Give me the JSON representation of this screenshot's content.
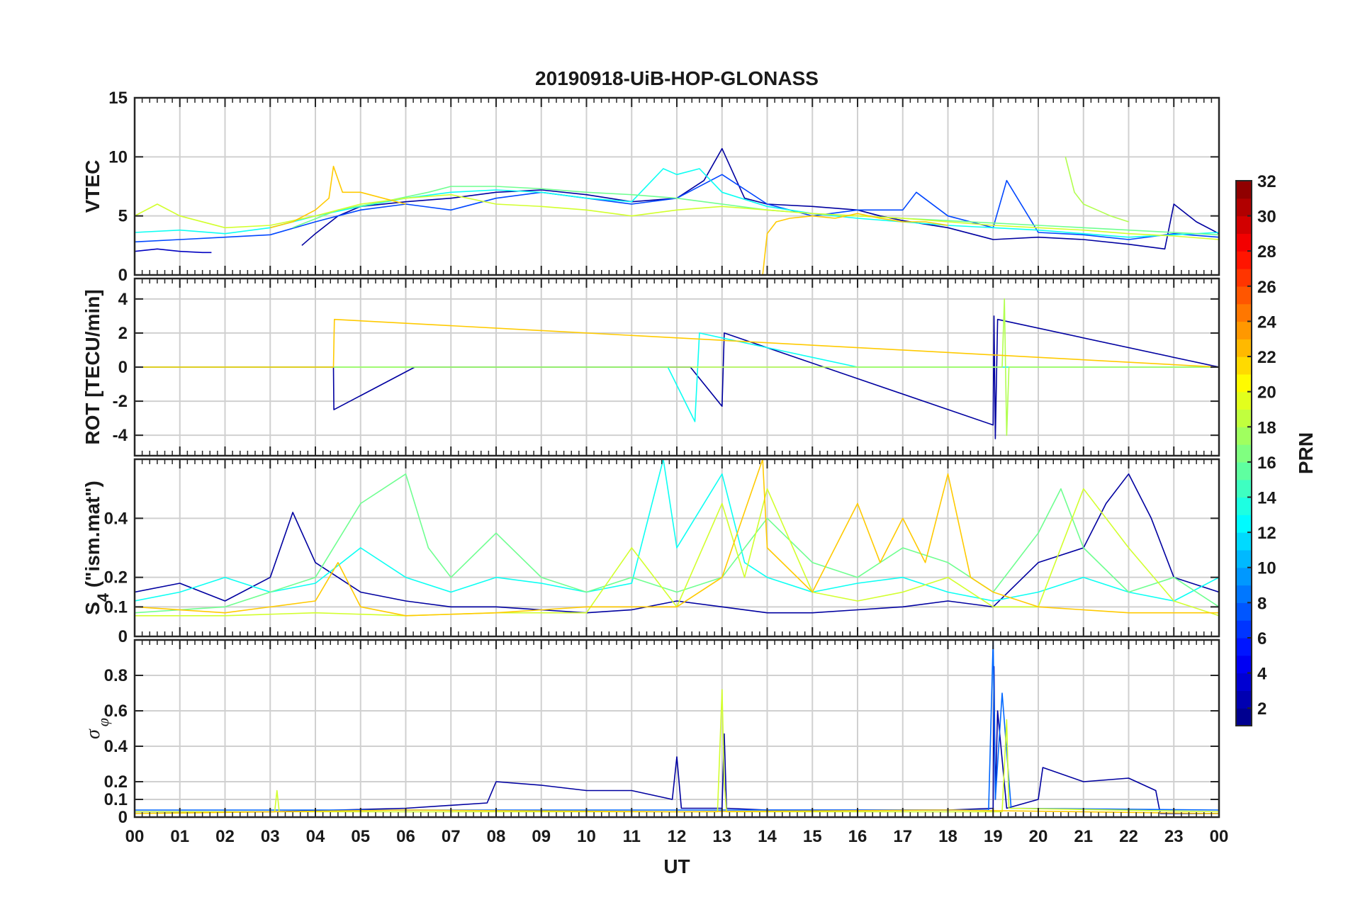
{
  "chart_data": {
    "type": "line",
    "title": "20190918-UiB-HOP-GLONASS",
    "xlabel": "UT",
    "x_ticks": [
      "00",
      "01",
      "02",
      "03",
      "04",
      "05",
      "06",
      "07",
      "08",
      "09",
      "10",
      "11",
      "12",
      "13",
      "14",
      "15",
      "16",
      "17",
      "18",
      "19",
      "20",
      "21",
      "22",
      "23",
      "00"
    ],
    "xlim_hours": [
      0,
      24
    ],
    "grid": true,
    "colorbar": {
      "label": "PRN",
      "range": [
        1,
        32
      ],
      "ticks": [
        "2",
        "4",
        "6",
        "8",
        "10",
        "12",
        "14",
        "16",
        "18",
        "20",
        "22",
        "24",
        "26",
        "28",
        "30",
        "32"
      ],
      "colormap": "jet",
      "placement": "right"
    },
    "panels": [
      {
        "ylabel": "VTEC",
        "ylim": [
          0,
          15
        ],
        "yticks": [
          "0",
          "5",
          "10",
          "15"
        ],
        "series": [
          {
            "prn": 3,
            "x": [
              0.0,
              0.5,
              1.0,
              1.5,
              1.7
            ],
            "y": [
              2.0,
              2.2,
              2.0,
              1.9,
              1.9
            ]
          },
          {
            "prn": 2,
            "x": [
              3.7,
              4.0,
              4.5,
              5.0,
              6.0,
              7.0,
              8.0,
              9.0,
              10.0,
              11.0,
              12.0,
              12.6,
              13.0,
              13.5,
              14.0,
              15.0,
              16.0,
              16.5,
              17.0,
              18.0,
              19.0,
              20.0,
              21.0,
              22.0,
              22.8,
              23.0,
              23.5,
              24.0
            ],
            "y": [
              2.5,
              3.5,
              5.0,
              5.8,
              6.2,
              6.5,
              7.0,
              7.2,
              6.8,
              6.2,
              6.5,
              8.0,
              10.7,
              6.5,
              6.0,
              5.8,
              5.5,
              5.0,
              4.6,
              4.0,
              3.0,
              3.2,
              3.0,
              2.6,
              2.2,
              6.0,
              4.5,
              3.5
            ]
          },
          {
            "prn": 7,
            "x": [
              0.0,
              1.0,
              2.0,
              3.0,
              4.0,
              5.0,
              6.0,
              7.0,
              8.0,
              9.0,
              10.0,
              11.0,
              12.0,
              13.0,
              14.0,
              15.0,
              16.0,
              17.0,
              17.3,
              18.0,
              19.0,
              19.3,
              20.0,
              21.0,
              22.0,
              23.0,
              24.0
            ],
            "y": [
              2.8,
              3.0,
              3.2,
              3.4,
              4.5,
              5.5,
              6.0,
              5.5,
              6.5,
              7.0,
              6.5,
              6.0,
              6.5,
              8.5,
              6.0,
              5.0,
              5.5,
              5.5,
              7.0,
              5.0,
              4.0,
              8.0,
              3.6,
              3.4,
              3.0,
              3.5,
              3.2
            ]
          },
          {
            "prn": 13,
            "x": [
              0.0,
              1.0,
              2.0,
              3.0,
              4.0,
              5.0,
              6.0,
              7.0,
              8.0,
              9.0,
              10.0,
              11.0,
              11.7,
              12.0,
              12.5,
              13.0,
              14.0,
              15.0,
              16.0,
              17.0,
              18.0,
              19.0,
              20.0,
              21.0,
              22.0,
              23.0,
              24.0
            ],
            "y": [
              3.6,
              3.8,
              3.5,
              4.0,
              5.0,
              5.8,
              6.5,
              7.0,
              7.2,
              7.0,
              6.5,
              6.2,
              9.0,
              8.5,
              9.0,
              7.0,
              5.8,
              5.2,
              4.8,
              4.5,
              4.2,
              4.0,
              3.8,
              3.5,
              3.2,
              3.4,
              3.6
            ]
          },
          {
            "prn": 16,
            "x": [
              3.5,
              4.5,
              5.5,
              6.5,
              7.0,
              8.0,
              9.0,
              10.0,
              11.0,
              12.0,
              13.0,
              14.0,
              15.0,
              16.0,
              17.0,
              18.0,
              19.0,
              20.0,
              21.0,
              22.0,
              23.0,
              24.0
            ],
            "y": [
              4.0,
              5.5,
              6.2,
              7.0,
              7.5,
              7.5,
              7.3,
              7.0,
              6.8,
              6.5,
              6.0,
              5.5,
              5.2,
              5.0,
              4.8,
              4.6,
              4.4,
              4.2,
              4.0,
              3.8,
              3.6,
              3.4
            ]
          },
          {
            "prn": 19,
            "x": [
              0.0,
              0.5,
              1.0,
              2.0,
              3.0,
              4.0,
              5.0,
              6.0,
              7.0,
              8.0,
              9.0,
              10.0,
              11.0,
              12.0,
              13.0,
              14.0,
              15.0,
              16.0,
              17.0,
              18.0,
              19.0,
              20.0,
              21.0,
              22.0,
              23.0,
              24.0
            ],
            "y": [
              5.0,
              6.0,
              5.0,
              4.0,
              4.2,
              5.0,
              6.0,
              6.5,
              6.8,
              6.0,
              5.8,
              5.5,
              5.0,
              5.5,
              5.8,
              5.5,
              5.2,
              5.0,
              4.8,
              4.5,
              4.2,
              4.0,
              3.8,
              3.5,
              3.3,
              3.0
            ]
          },
          {
            "prn": 18,
            "x": [
              20.6,
              20.8,
              21.0,
              21.3,
              21.6,
              22.0
            ],
            "y": [
              10.0,
              7.0,
              6.0,
              5.5,
              5.0,
              4.5
            ]
          },
          {
            "prn": 22,
            "x": [
              3.0,
              3.5,
              4.0,
              4.3,
              4.4,
              4.6,
              5.0,
              5.5,
              6.0
            ],
            "y": [
              4.0,
              4.5,
              5.5,
              6.5,
              9.2,
              7.0,
              7.0,
              6.5,
              6.0
            ]
          },
          {
            "prn": 22,
            "x": [
              13.9,
              14.0,
              14.2,
              14.5,
              15.0,
              15.5,
              16.0,
              16.5,
              17.0,
              17.5,
              18.0
            ],
            "y": [
              0.0,
              3.5,
              4.5,
              4.8,
              5.0,
              4.8,
              5.2,
              4.8,
              4.5,
              4.5,
              4.2
            ]
          }
        ]
      },
      {
        "ylabel": "ROT [TECU/min]",
        "ylim": [
          -5.2,
          5.2
        ],
        "yticks": [
          "-4",
          "-2",
          "0",
          "2",
          "4"
        ],
        "series": [
          {
            "prn": 2,
            "x": [
              0,
              4.4,
              4.41,
              6.2,
              12.3,
              13.0,
              13.05,
              19.0,
              19.02,
              19.05,
              19.1,
              24
            ],
            "y": [
              0,
              0,
              -2.5,
              0,
              0,
              -2.3,
              2.0,
              -3.4,
              3.0,
              -4.2,
              2.8,
              0
            ]
          },
          {
            "prn": 13,
            "x": [
              0,
              11.8,
              12.4,
              12.5,
              16,
              24
            ],
            "y": [
              0,
              0,
              -3.2,
              2.0,
              0,
              0
            ]
          },
          {
            "prn": 18,
            "x": [
              0,
              19.2,
              19.25,
              19.3,
              19.35,
              24
            ],
            "y": [
              0,
              0,
              4.0,
              -4.0,
              0,
              0
            ]
          },
          {
            "prn": 22,
            "x": [
              0,
              4.4,
              4.42,
              24
            ],
            "y": [
              0,
              0,
              2.8,
              0
            ]
          }
        ]
      },
      {
        "ylabel": "S4 (\"ism.mat\")",
        "ylabel_main": "S",
        "ylabel_sub": "4",
        "ylabel_rest": " (\"ism.mat\")",
        "ylim": [
          0,
          0.6
        ],
        "yticks": [
          "0",
          "0.1",
          "0.2",
          "0.4"
        ],
        "series": [
          {
            "prn": 2,
            "x": [
              0,
              1,
              2,
              3,
              3.5,
              4,
              5,
              6,
              7,
              8,
              9,
              10,
              11,
              12,
              13,
              14,
              15,
              16,
              17,
              18,
              19,
              20,
              21,
              21.5,
              22,
              22.5,
              23,
              24
            ],
            "y": [
              0.15,
              0.18,
              0.12,
              0.2,
              0.42,
              0.25,
              0.15,
              0.12,
              0.1,
              0.1,
              0.09,
              0.08,
              0.09,
              0.12,
              0.1,
              0.08,
              0.08,
              0.09,
              0.1,
              0.12,
              0.1,
              0.25,
              0.3,
              0.45,
              0.55,
              0.4,
              0.2,
              0.15
            ]
          },
          {
            "prn": 13,
            "x": [
              0,
              1,
              2,
              3,
              4,
              5,
              6,
              7,
              8,
              9,
              10,
              11,
              11.7,
              12,
              13,
              13.5,
              14,
              15,
              16,
              17,
              18,
              19,
              20,
              21,
              22,
              23,
              24
            ],
            "y": [
              0.12,
              0.15,
              0.2,
              0.15,
              0.18,
              0.3,
              0.2,
              0.15,
              0.2,
              0.18,
              0.15,
              0.18,
              0.6,
              0.3,
              0.55,
              0.25,
              0.2,
              0.15,
              0.18,
              0.2,
              0.15,
              0.12,
              0.15,
              0.2,
              0.15,
              0.12,
              0.2
            ]
          },
          {
            "prn": 16,
            "x": [
              0,
              2,
              4,
              5,
              6,
              6.5,
              7,
              8,
              9,
              10,
              11,
              12,
              13,
              14,
              15,
              16,
              17,
              18,
              19,
              20,
              20.5,
              21,
              22,
              23,
              24
            ],
            "y": [
              0.08,
              0.1,
              0.2,
              0.45,
              0.55,
              0.3,
              0.2,
              0.35,
              0.2,
              0.15,
              0.2,
              0.15,
              0.2,
              0.4,
              0.25,
              0.2,
              0.3,
              0.25,
              0.15,
              0.35,
              0.5,
              0.3,
              0.15,
              0.2,
              0.1
            ]
          },
          {
            "prn": 19,
            "x": [
              0,
              2,
              4,
              6,
              8,
              10,
              11,
              12,
              13,
              13.5,
              14,
              15,
              16,
              17,
              18,
              19,
              20,
              21,
              22,
              23,
              24
            ],
            "y": [
              0.07,
              0.07,
              0.08,
              0.07,
              0.08,
              0.08,
              0.3,
              0.1,
              0.45,
              0.2,
              0.5,
              0.15,
              0.12,
              0.15,
              0.2,
              0.1,
              0.1,
              0.5,
              0.3,
              0.12,
              0.07
            ]
          },
          {
            "prn": 22,
            "x": [
              0,
              2,
              4,
              4.5,
              5,
              6,
              8,
              10,
              12,
              13,
              13.9,
              14,
              15,
              16,
              16.5,
              17,
              17.5,
              18,
              18.5,
              19,
              20,
              22,
              24
            ],
            "y": [
              0.1,
              0.08,
              0.12,
              0.25,
              0.1,
              0.07,
              0.08,
              0.1,
              0.1,
              0.2,
              0.6,
              0.3,
              0.15,
              0.45,
              0.25,
              0.4,
              0.25,
              0.55,
              0.2,
              0.15,
              0.1,
              0.08,
              0.08
            ]
          }
        ]
      },
      {
        "ylabel": "σ φ",
        "ylabel_main": "σ",
        "ylabel_sub": "φ",
        "ylim": [
          0,
          1.0
        ],
        "yticks": [
          "0",
          "0.1",
          "0.2",
          "0.4",
          "0.6",
          "0.8"
        ],
        "series": [
          {
            "prn": 2,
            "x": [
              0,
              3,
              6,
              7.8,
              8,
              9,
              10,
              11,
              11.9,
              12,
              12.1,
              13,
              13.05,
              13.1,
              14,
              18,
              19,
              19.02,
              19.05,
              19.1,
              19.3,
              20,
              20.1,
              21,
              22,
              22.6,
              22.7,
              24
            ],
            "y": [
              0.03,
              0.03,
              0.05,
              0.08,
              0.2,
              0.18,
              0.15,
              0.15,
              0.1,
              0.34,
              0.05,
              0.05,
              0.47,
              0.05,
              0.04,
              0.04,
              0.05,
              0.85,
              0.1,
              0.6,
              0.05,
              0.1,
              0.28,
              0.2,
              0.22,
              0.15,
              0.02,
              0.02
            ]
          },
          {
            "prn": 8,
            "x": [
              0,
              10,
              18.9,
              19.0,
              19.05,
              19.2,
              19.4,
              24
            ],
            "y": [
              0.04,
              0.04,
              0.04,
              1.0,
              0.1,
              0.7,
              0.05,
              0.04
            ]
          },
          {
            "prn": 19,
            "x": [
              0,
              3.1,
              3.15,
              3.2,
              12.9,
              13.0,
              13.05,
              13.1,
              19.2,
              19.3,
              19.35,
              24
            ],
            "y": [
              0.03,
              0.03,
              0.15,
              0.03,
              0.03,
              0.72,
              0.2,
              0.03,
              0.03,
              0.55,
              0.05,
              0.03
            ]
          },
          {
            "prn": 22,
            "x": [
              0,
              6,
              12,
              18,
              24
            ],
            "y": [
              0.02,
              0.04,
              0.03,
              0.04,
              0.02
            ]
          }
        ]
      }
    ]
  }
}
